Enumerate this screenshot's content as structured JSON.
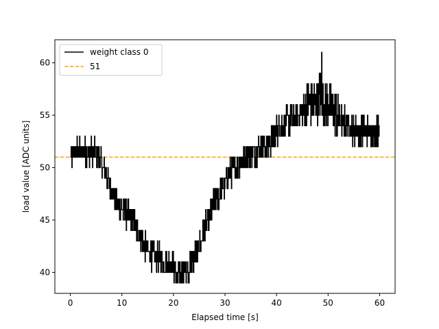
{
  "chart_data": {
    "type": "line",
    "xlabel": "Elapsed time [s]",
    "ylabel": "load value [ADC units]",
    "xlim": [
      -3,
      63
    ],
    "ylim": [
      38,
      62.2
    ],
    "xticks": [
      0,
      10,
      20,
      30,
      40,
      50,
      60
    ],
    "yticks": [
      40,
      45,
      50,
      55,
      60
    ],
    "grid": false,
    "legend_position": "top-left",
    "colors": {
      "series": "#000000",
      "reference": "#ffa500"
    },
    "series": [
      {
        "name": "weight class 0",
        "style": "solid",
        "x": [
          0,
          1,
          2,
          3,
          4,
          5,
          5.5,
          6,
          7,
          8,
          9,
          10,
          11,
          12,
          13,
          14,
          15,
          16,
          17,
          18,
          19,
          20,
          21,
          22,
          23,
          24,
          25,
          26,
          27,
          28,
          29,
          30,
          31,
          32,
          33,
          34,
          35,
          36,
          37,
          38,
          39,
          40,
          41,
          42,
          43,
          44,
          45,
          46,
          47,
          48,
          48.5,
          49,
          50,
          51,
          52,
          53,
          54,
          55,
          56,
          57,
          58,
          59,
          60
        ],
        "y": [
          51,
          51.5,
          51.5,
          51.5,
          51.5,
          51.5,
          51,
          50.5,
          49,
          48,
          46.5,
          46,
          45.5,
          45,
          44,
          43,
          42,
          41.5,
          41.5,
          41,
          41,
          40.5,
          40,
          40,
          40.5,
          41.5,
          42.5,
          44,
          45.5,
          47,
          47.5,
          48.5,
          49.5,
          50,
          50.5,
          51,
          51.5,
          51.5,
          52,
          52,
          52.5,
          53.5,
          54,
          54.5,
          54.5,
          55,
          55.5,
          56,
          56,
          56.5,
          57,
          56,
          56,
          55.5,
          54.5,
          54.5,
          54,
          53.5,
          53.5,
          53.5,
          53.5,
          53.5,
          53.5
        ],
        "noise_amplitude": 1.2,
        "y_min": 39,
        "y_max": 61
      },
      {
        "name": "51",
        "style": "dashed",
        "y_constant": 51
      }
    ]
  }
}
